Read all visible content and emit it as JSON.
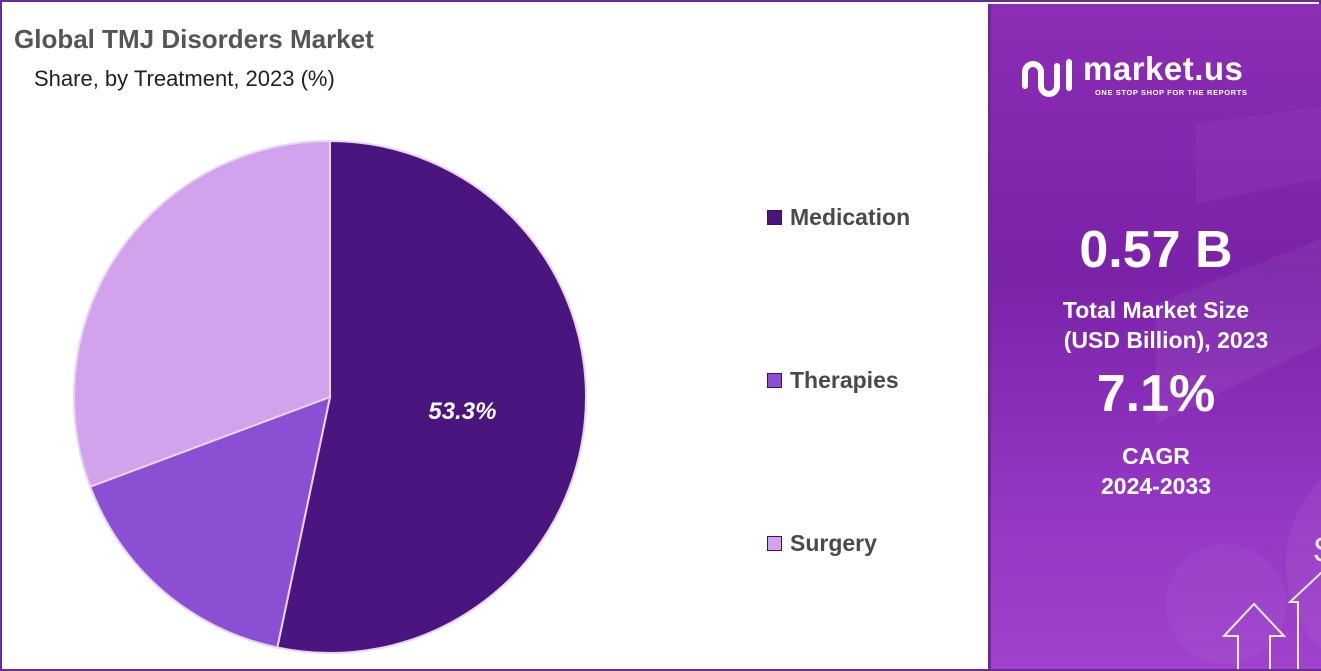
{
  "header": {
    "title": "Global TMJ Disorders Market",
    "subtitle": "Share, by Treatment, 2023 (%)"
  },
  "chart_data": {
    "type": "pie",
    "title": "Global TMJ Disorders Market",
    "subtitle": "Share, by Treatment, 2023 (%)",
    "categories": [
      "Medication",
      "Therapies",
      "Surgery"
    ],
    "values": [
      53.3,
      16.0,
      30.7
    ],
    "data_labels": [
      "53.3%",
      "",
      ""
    ],
    "colors": [
      "#4b1580",
      "#8a4fd2",
      "#d2a3ec"
    ],
    "legend_position": "right"
  },
  "side_panel": {
    "brand_name": "market.us",
    "brand_tagline": "ONE STOP SHOP FOR THE REPORTS",
    "market_size_value": "0.57 B",
    "market_size_label_line1": "Total Market Size",
    "market_size_label_line2": "(USD Billion), 2023",
    "cagr_value": "7.1%",
    "cagr_label_line1": "CAGR",
    "cagr_label_line2": "2024-2033",
    "currency_symbol": "$",
    "icons": [
      "market-us-logo-icon",
      "dollar-icon",
      "up-arrow-icon"
    ]
  },
  "colors": {
    "frame": "#6a2c91",
    "panel": "#8c2db5",
    "title_text": "#555555"
  }
}
